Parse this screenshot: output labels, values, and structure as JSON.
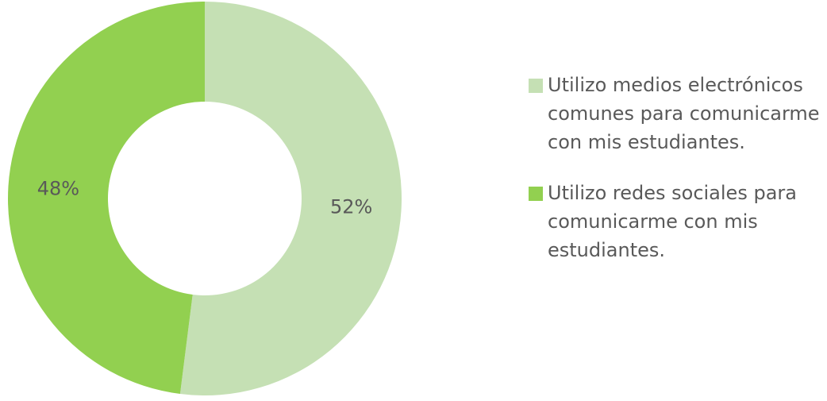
{
  "chart_data": {
    "type": "donut",
    "categories": [
      "Utilizo medios electrónicos comunes para comunicarme con mis estudiantes.",
      "Utilizo redes sociales para comunicarme con mis estudiantes."
    ],
    "values": [
      52,
      48
    ],
    "value_labels": [
      "52%",
      "48%"
    ],
    "colors": [
      "#c5e0b4",
      "#92d050"
    ],
    "legend": "right"
  }
}
